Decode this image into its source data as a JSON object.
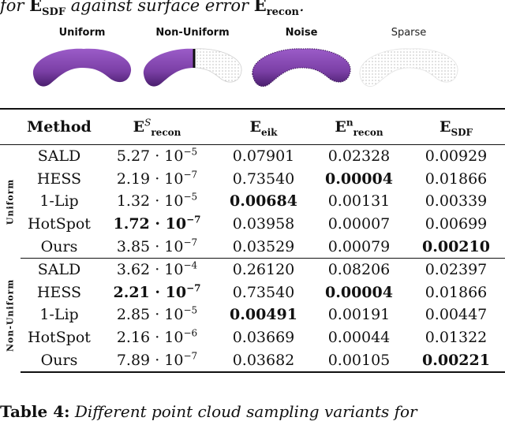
{
  "header_text": {
    "prefix": "for",
    "metric_a": "E",
    "metric_a_sub": "SDF",
    "middle": "against surface error",
    "metric_b": "E",
    "metric_b_sub": "recon",
    "suffix": "."
  },
  "panels": [
    {
      "label": "Uniform"
    },
    {
      "label": "Non-Uniform"
    },
    {
      "label": "Noise"
    },
    {
      "label": "Sparse"
    }
  ],
  "table": {
    "columns": [
      "Method",
      "E",
      "E",
      "E",
      "E"
    ],
    "column_subs": [
      "",
      "recon",
      "eik",
      "recon",
      "SDF"
    ],
    "column_sups": [
      "",
      "S",
      "",
      "n",
      ""
    ],
    "groups": [
      {
        "name": "Uniform",
        "rows": [
          {
            "method": "SALD",
            "c1_mant": "5.27",
            "c1_exp": "−5",
            "c2": "0.07901",
            "c3": "0.02328",
            "c4": "0.00929"
          },
          {
            "method": "HESS",
            "c1_mant": "2.19",
            "c1_exp": "−7",
            "c2": "0.73540",
            "c3": "0.00004",
            "c4": "0.01866"
          },
          {
            "method": "1-Lip",
            "c1_mant": "1.32",
            "c1_exp": "−5",
            "c2": "0.00684",
            "c3": "0.00131",
            "c4": "0.00339"
          },
          {
            "method": "HotSpot",
            "c1_mant": "1.72",
            "c1_exp": "−7",
            "c2": "0.03958",
            "c3": "0.00007",
            "c4": "0.00699"
          },
          {
            "method": "Ours",
            "c1_mant": "3.85",
            "c1_exp": "−7",
            "c2": "0.03529",
            "c3": "0.00079",
            "c4": "0.00210"
          }
        ]
      },
      {
        "name": "Non-Uniform",
        "rows": [
          {
            "method": "SALD",
            "c1_mant": "3.62",
            "c1_exp": "−4",
            "c2": "0.26120",
            "c3": "0.08206",
            "c4": "0.02397"
          },
          {
            "method": "HESS",
            "c1_mant": "2.21",
            "c1_exp": "−7",
            "c2": "0.73540",
            "c3": "0.00004",
            "c4": "0.01866"
          },
          {
            "method": "1-Lip",
            "c1_mant": "2.85",
            "c1_exp": "−5",
            "c2": "0.00491",
            "c3": "0.00191",
            "c4": "0.00447"
          },
          {
            "method": "HotSpot",
            "c1_mant": "2.16",
            "c1_exp": "−6",
            "c2": "0.03669",
            "c3": "0.00044",
            "c4": "0.01322"
          },
          {
            "method": "Ours",
            "c1_mant": "7.89",
            "c1_exp": "−7",
            "c2": "0.03682",
            "c3": "0.00105",
            "c4": "0.00221"
          }
        ]
      }
    ],
    "times": "·",
    "base": "10"
  },
  "caption": {
    "label": "Table 4:",
    "text": "Different point cloud sampling variants for"
  },
  "colors": {
    "shape_purple": "#7b3fa6",
    "shape_dark": "#4a1f6e",
    "mesh_grey": "#bdbdbd"
  }
}
